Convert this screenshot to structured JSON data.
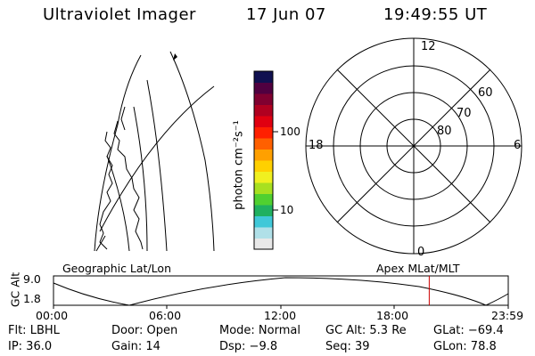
{
  "header": {
    "instrument": "Ultraviolet Imager",
    "date": "17 Jun 07",
    "time": "19:49:55 UT"
  },
  "geo_panel": {
    "label": "Geographic Lat/Lon"
  },
  "colorbar": {
    "unit_label": "photon cm⁻²s⁻¹",
    "tick_labels": [
      "100",
      "10"
    ],
    "scale": "log",
    "colors": [
      "#e8e8e8",
      "#b0e0e8",
      "#40c8d8",
      "#20b060",
      "#50d030",
      "#a8e020",
      "#f0f020",
      "#ffd000",
      "#ffa000",
      "#ff6000",
      "#ff2000",
      "#e00010",
      "#b00020",
      "#800030",
      "#500040",
      "#101050"
    ]
  },
  "polar_panel": {
    "label": "Apex MLat/MLT",
    "mlt_labels": {
      "top": "12",
      "bottom": "0",
      "left": "18",
      "right": "6"
    },
    "lat_labels": [
      "60",
      "70",
      "80"
    ]
  },
  "orbit_plot": {
    "ylabel": "GC Alt",
    "yticks": [
      "9.0",
      "1.8"
    ],
    "xticks": [
      "00:00",
      "06:00",
      "12:00",
      "18:00",
      "23:59"
    ],
    "marker_color": "#cc0000",
    "marker_time_hours": 19.83
  },
  "status": {
    "flt": "Flt: LBHL",
    "door": "Door: Open",
    "mode": "Mode: Normal",
    "gc_alt": "GC Alt: 5.3 Re",
    "glat": "GLat: −69.4",
    "ip": "IP: 36.0",
    "gain": "Gain: 14",
    "dsp": "Dsp:    −9.8",
    "seq": "Seq: 39",
    "glon": "GLon:  78.8"
  }
}
